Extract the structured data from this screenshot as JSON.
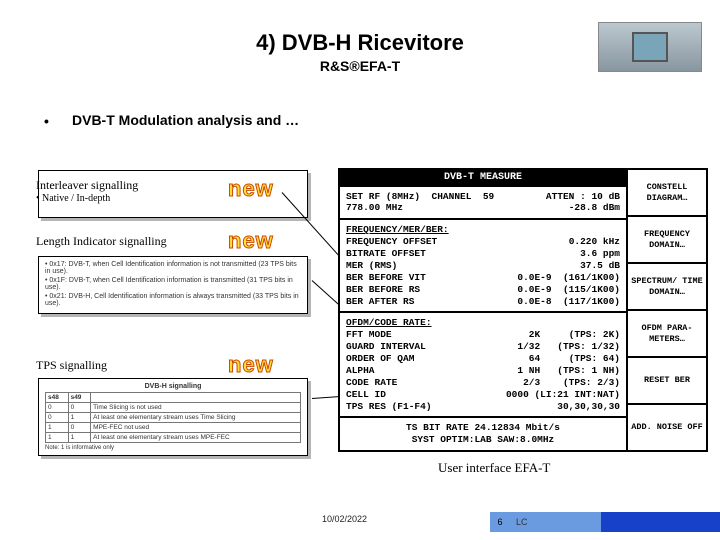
{
  "title": "4) DVB-H Ricevitore",
  "subtitle": "R&S®EFA-T",
  "bullet": "DVB-T Modulation analysis and …",
  "tags": {
    "t1": "Interleaver signalling",
    "t1sub": "• Native / In-depth",
    "t2": "Length Indicator signalling",
    "t3": "TPS signalling"
  },
  "new_label": "new",
  "leftbox2_items": [
    "0x17: DVB-T, when Cell Identification information is not transmitted (23 TPS bits in use).",
    "0x1F: DVB-T, when Cell Identification information is transmitted (31 TPS bits in use).",
    "0x21: DVB-H, Cell Identification information is always transmitted (33 TPS bits in use)."
  ],
  "leftbox3": {
    "title": "DVB-H signalling",
    "cols": [
      "s48",
      "s49",
      ""
    ],
    "rows": [
      [
        "0",
        "0",
        "Time Slicing is not used"
      ],
      [
        "0",
        "1",
        "At least one elementary stream uses Time Slicing"
      ],
      [
        "1",
        "0",
        "MPE-FEC not used"
      ],
      [
        "1",
        "1",
        "At least one elementary stream uses MPE-FEC"
      ]
    ],
    "note": "Note: 1 is informative only"
  },
  "panel": {
    "title": "DVB-T MEASURE",
    "header": {
      "l1_left": "SET RF (8MHz)",
      "l1_mid": "CHANNEL",
      "l1_ch": "59",
      "l1_right": "ATTEN : 10 dB",
      "l2_left": "778.00 MHz",
      "l2_right": "-28.8 dBm"
    },
    "sec1_title": "FREQUENCY/MER/BER:",
    "sec1": [
      {
        "k": "FREQUENCY OFFSET",
        "v": "0.220 kHz"
      },
      {
        "k": "BITRATE OFFSET",
        "v": "3.6 ppm"
      },
      {
        "k": "MER (RMS)",
        "v": "37.5 dB"
      },
      {
        "k": "BER BEFORE VIT",
        "v": "0.0E-9  (161/1K00)"
      },
      {
        "k": "BER BEFORE RS",
        "v": "0.0E-9  (115/1K00)"
      },
      {
        "k": "BER AFTER RS",
        "v": "0.0E-8  (117/1K00)"
      }
    ],
    "sec2_title": "OFDM/CODE RATE:",
    "sec2": [
      {
        "k": "FFT MODE",
        "v": "2K     (TPS: 2K)"
      },
      {
        "k": "GUARD INTERVAL",
        "v": "1/32   (TPS: 1/32)"
      },
      {
        "k": "ORDER OF QAM",
        "v": "64     (TPS: 64)"
      },
      {
        "k": "ALPHA",
        "v": "1 NH   (TPS: 1 NH)"
      },
      {
        "k": "CODE RATE",
        "v": "2/3    (TPS: 2/3)"
      },
      {
        "k": "CELL ID",
        "v": "0000 (LI:21 INT:NAT)"
      },
      {
        "k": "TPS RES (F1-F4)",
        "v": "30,30,30,30"
      }
    ],
    "footer_l1": "TS BIT RATE 24.12834 Mbit/s",
    "footer_l2": "SYST OPTIM:LAB  SAW:8.0MHz",
    "side": [
      "CONSTELL DIAGRAM…",
      "FREQUENCY DOMAIN…",
      "SPECTRUM/ TIME DOMAIN…",
      "OFDM PARA-METERS…",
      "RESET BER",
      "ADD. NOISE OFF"
    ]
  },
  "ui_caption": "User interface EFA-T",
  "footer": {
    "date": "10/02/2022",
    "page": "6",
    "author": "LC"
  }
}
